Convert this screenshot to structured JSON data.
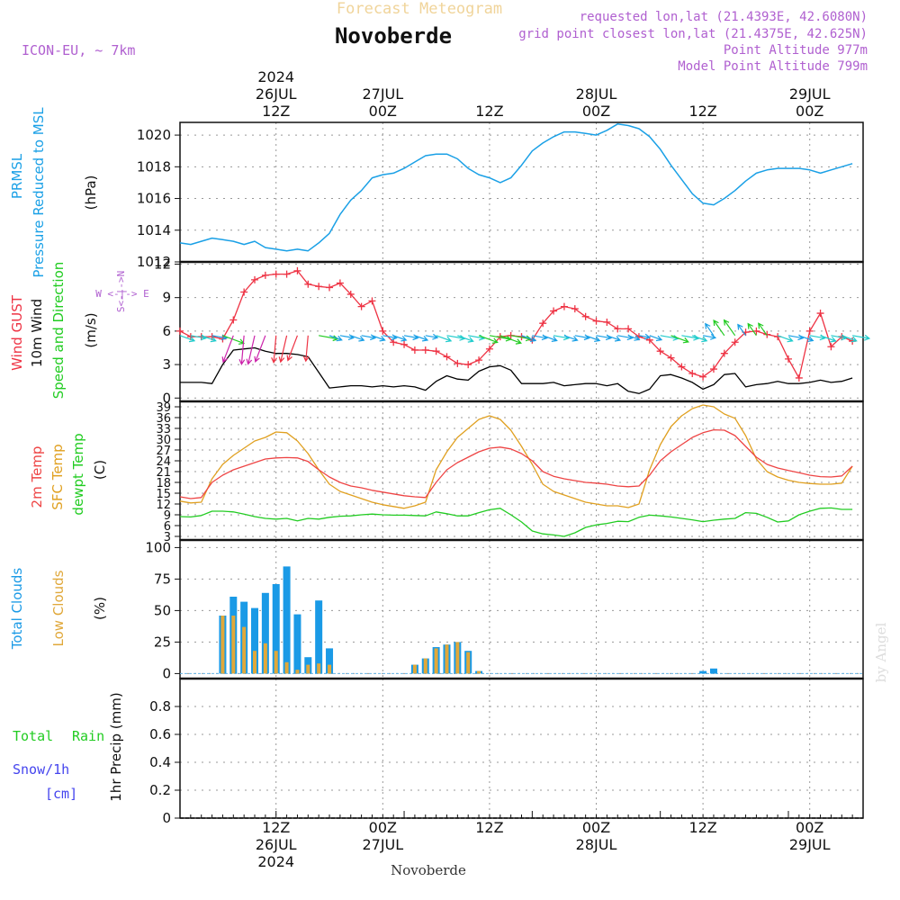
{
  "header": {
    "product": "Forecast Meteogram",
    "station": "Novoberde",
    "model": "ICON-EU, ~ 7km",
    "requested": "requested lon,lat (21.4393E, 42.6080N)",
    "closest": "grid point closest lon,lat (21.4375E, 42.625N)",
    "point_alt": "Point Altitude 977m",
    "model_alt": "Model Point Altitude 799m",
    "footer_station": "Novoberde",
    "watermark": "by Angel"
  },
  "colors": {
    "pressure": "#1aa0e6",
    "gust": "#ee3344",
    "wind10m": "#000000",
    "green": "#22cc22",
    "t2m": "#ee4444",
    "sfc": "#e0a020",
    "dew": "#22cc22",
    "total_clouds": "#1a9ae6",
    "low_clouds": "#e0a83a",
    "purple": "#b060d0",
    "snow": "#4444ee"
  },
  "time_axis": {
    "range_hours": [
      -9,
      55
    ],
    "top_ticks": [
      {
        "h": 0,
        "lines": [
          "2024",
          "26JUL",
          "12Z"
        ]
      },
      {
        "h": 10,
        "lines": [
          "27JUL",
          "00Z"
        ]
      },
      {
        "h": 20,
        "lines": [
          "12Z"
        ]
      },
      {
        "h": 30,
        "lines": [
          "28JUL",
          "00Z"
        ]
      },
      {
        "h": 40,
        "lines": [
          "12Z"
        ]
      },
      {
        "h": 50,
        "lines": [
          "29JUL",
          "00Z"
        ]
      }
    ],
    "bottom_ticks": [
      {
        "h": 0,
        "lines": [
          "12Z",
          "26JUL",
          "2024"
        ]
      },
      {
        "h": 10,
        "lines": [
          "00Z",
          "27JUL"
        ]
      },
      {
        "h": 20,
        "lines": [
          "12Z"
        ]
      },
      {
        "h": 30,
        "lines": [
          "00Z",
          "28JUL"
        ]
      },
      {
        "h": 40,
        "lines": [
          "12Z"
        ]
      },
      {
        "h": 50,
        "lines": [
          "00Z",
          "29JUL"
        ]
      }
    ]
  },
  "panels": {
    "pressure": {
      "label1": "PRMSL",
      "label2": "Pressure Reduced to MSL",
      "unit": "(hPa)",
      "ticks": [
        "1012",
        "1014",
        "1016",
        "1018",
        "1020"
      ]
    },
    "wind": {
      "label_gust": "Wind GUST",
      "label_wind": "10m Wind",
      "label_dir": "Speed and Direction",
      "unit": "(m/s)",
      "ticks": [
        "0",
        "3",
        "6",
        "9",
        "12"
      ],
      "compass": [
        "W <-|-> E",
        "S<-|->N"
      ]
    },
    "temp": {
      "label1": "2m Temp",
      "label2": "SFC Temp",
      "label3": "dewpt Temp",
      "unit": "(C)",
      "ticks": [
        "3",
        "6",
        "9",
        "12",
        "15",
        "18",
        "21",
        "24",
        "27",
        "30",
        "33",
        "36",
        "39"
      ]
    },
    "clouds": {
      "label1": "Total Clouds",
      "label2": "Low Clouds",
      "unit": "(%)",
      "ticks": [
        "0",
        "25",
        "50",
        "75",
        "100"
      ]
    },
    "precip": {
      "label1": "Total",
      "label2": "Rain",
      "label3": "Snow/1h",
      "label4": "[cm]",
      "unit": "1hr Precip (mm)",
      "ticks": [
        "0",
        "0.2",
        "0.4",
        "0.6",
        "0.8"
      ]
    }
  },
  "chart_data": [
    {
      "type": "line",
      "title": "PRMSL Pressure Reduced to MSL",
      "ylabel": "hPa",
      "ylim": [
        1012,
        1020.8
      ],
      "x": [
        -9,
        -8,
        -7,
        -6,
        -5,
        -4,
        -3,
        -2,
        -1,
        0,
        1,
        2,
        3,
        4,
        5,
        6,
        7,
        8,
        9,
        10,
        11,
        12,
        13,
        14,
        15,
        16,
        17,
        18,
        19,
        20,
        21,
        22,
        23,
        24,
        25,
        26,
        27,
        28,
        29,
        30,
        31,
        32,
        33,
        34,
        35,
        36,
        37,
        38,
        39,
        40,
        41,
        42,
        43,
        44,
        45,
        46,
        47,
        48,
        49,
        50,
        51,
        52,
        53,
        54
      ],
      "series": [
        {
          "name": "PRMSL",
          "values": [
            1013.2,
            1013.1,
            1013.3,
            1013.5,
            1013.4,
            1013.3,
            1013.1,
            1013.3,
            1012.9,
            1012.8,
            1012.7,
            1012.8,
            1012.7,
            1013.2,
            1013.8,
            1015.0,
            1015.9,
            1016.5,
            1017.3,
            1017.5,
            1017.6,
            1017.9,
            1018.3,
            1018.7,
            1018.8,
            1018.8,
            1018.5,
            1017.9,
            1017.5,
            1017.3,
            1017.0,
            1017.3,
            1018.1,
            1019.0,
            1019.5,
            1019.9,
            1020.2,
            1020.2,
            1020.1,
            1020.0,
            1020.3,
            1020.7,
            1020.6,
            1020.4,
            1019.9,
            1019.1,
            1018.1,
            1017.2,
            1016.3,
            1015.7,
            1015.6,
            1016.0,
            1016.5,
            1017.1,
            1017.6,
            1017.8,
            1017.9,
            1017.9,
            1017.9,
            1017.8,
            1017.6,
            1017.8,
            1018.0,
            1018.2
          ]
        }
      ]
    },
    {
      "type": "line",
      "title": "Wind GUST / 10m Wind Speed and Direction",
      "ylabel": "m/s",
      "ylim": [
        -0.3,
        12.2
      ],
      "x": [
        -9,
        -8,
        -7,
        -6,
        -5,
        -4,
        -3,
        -2,
        -1,
        0,
        1,
        2,
        3,
        4,
        5,
        6,
        7,
        8,
        9,
        10,
        11,
        12,
        13,
        14,
        15,
        16,
        17,
        18,
        19,
        20,
        21,
        22,
        23,
        24,
        25,
        26,
        27,
        28,
        29,
        30,
        31,
        32,
        33,
        34,
        35,
        36,
        37,
        38,
        39,
        40,
        41,
        42,
        43,
        44,
        45,
        46,
        47,
        48,
        49,
        50,
        51,
        52,
        53,
        54
      ],
      "series": [
        {
          "name": "Wind GUST",
          "values": [
            6.0,
            5.5,
            5.5,
            5.5,
            5.3,
            7.0,
            9.5,
            10.6,
            11.0,
            11.1,
            11.1,
            11.4,
            10.2,
            10.0,
            9.9,
            10.3,
            9.3,
            8.2,
            8.7,
            6.0,
            5.0,
            4.8,
            4.3,
            4.3,
            4.2,
            3.7,
            3.1,
            3.0,
            3.4,
            4.4,
            5.5,
            5.6,
            5.5,
            5.2,
            6.7,
            7.8,
            8.2,
            8.0,
            7.3,
            6.9,
            6.8,
            6.2,
            6.2,
            5.5,
            5.2,
            4.2,
            3.6,
            2.8,
            2.2,
            1.9,
            2.6,
            4.0,
            5.0,
            5.9,
            6.0,
            5.7,
            5.5,
            3.5,
            1.8,
            6.0,
            7.6,
            4.6,
            5.5,
            5.1
          ]
        },
        {
          "name": "10m Wind",
          "values": [
            1.4,
            1.4,
            1.4,
            1.3,
            3.0,
            4.3,
            4.4,
            4.5,
            4.2,
            4.0,
            4.0,
            3.9,
            3.7,
            2.3,
            0.9,
            1.0,
            1.1,
            1.1,
            1.0,
            1.1,
            1.0,
            1.1,
            1.0,
            0.7,
            1.5,
            2.0,
            1.7,
            1.6,
            2.4,
            2.8,
            2.9,
            2.5,
            1.3,
            1.3,
            1.3,
            1.4,
            1.1,
            1.2,
            1.3,
            1.3,
            1.1,
            1.3,
            0.6,
            0.4,
            0.8,
            2.0,
            2.1,
            1.8,
            1.4,
            0.8,
            1.2,
            2.1,
            2.2,
            1.0,
            1.2,
            1.3,
            1.5,
            1.3,
            1.3,
            1.4,
            1.6,
            1.4,
            1.5,
            1.8
          ]
        }
      ]
    },
    {
      "type": "line",
      "title": "2m Temp / SFC Temp / dewpt Temp",
      "ylabel": "C",
      "ylim": [
        2,
        40.5
      ],
      "x": [
        -9,
        -8,
        -7,
        -6,
        -5,
        -4,
        -3,
        -2,
        -1,
        0,
        1,
        2,
        3,
        4,
        5,
        6,
        7,
        8,
        9,
        10,
        11,
        12,
        13,
        14,
        15,
        16,
        17,
        18,
        19,
        20,
        21,
        22,
        23,
        24,
        25,
        26,
        27,
        28,
        29,
        30,
        31,
        32,
        33,
        34,
        35,
        36,
        37,
        38,
        39,
        40,
        41,
        42,
        43,
        44,
        45,
        46,
        47,
        48,
        49,
        50,
        51,
        52,
        53,
        54
      ],
      "series": [
        {
          "name": "2m Temp",
          "values": [
            14.0,
            13.5,
            13.8,
            18.0,
            20.0,
            21.5,
            22.5,
            23.5,
            24.5,
            24.8,
            24.9,
            24.8,
            23.8,
            21.5,
            19.5,
            18.0,
            17.0,
            16.5,
            15.8,
            15.3,
            14.8,
            14.3,
            14.0,
            13.8,
            18.0,
            21.5,
            23.5,
            25.0,
            26.5,
            27.5,
            27.8,
            27.3,
            26.0,
            24.0,
            21.0,
            19.7,
            19.0,
            18.5,
            18.0,
            17.8,
            17.5,
            17.0,
            16.8,
            17.0,
            20.0,
            24.0,
            26.5,
            28.5,
            30.5,
            31.8,
            32.6,
            32.5,
            31.0,
            28.0,
            25.0,
            23.0,
            22.0,
            21.3,
            20.7,
            20.0,
            19.6,
            19.5,
            19.8,
            22.5
          ]
        },
        {
          "name": "SFC Temp",
          "values": [
            12.8,
            12.3,
            12.5,
            19.0,
            23.0,
            25.5,
            27.5,
            29.5,
            30.5,
            32.0,
            31.8,
            29.5,
            26.0,
            21.5,
            17.5,
            15.5,
            14.5,
            13.5,
            12.5,
            11.8,
            11.3,
            10.8,
            11.5,
            12.5,
            21.5,
            26.5,
            30.5,
            33.0,
            35.5,
            36.5,
            35.5,
            32.5,
            28.0,
            23.0,
            17.5,
            15.5,
            14.5,
            13.5,
            12.5,
            12.0,
            11.5,
            11.5,
            11.0,
            12.0,
            21.5,
            28.5,
            33.5,
            36.5,
            38.5,
            39.5,
            39.0,
            37.0,
            35.8,
            31.0,
            24.5,
            21.0,
            19.5,
            18.6,
            18.0,
            17.7,
            17.5,
            17.5,
            17.8,
            22.5
          ]
        },
        {
          "name": "dewpt Temp",
          "values": [
            8.5,
            8.4,
            8.8,
            10.0,
            10.0,
            9.8,
            9.2,
            8.5,
            8.0,
            7.8,
            8.0,
            7.3,
            8.0,
            7.8,
            8.3,
            8.6,
            8.7,
            9.0,
            9.2,
            9.0,
            8.9,
            8.9,
            8.8,
            8.7,
            9.8,
            9.3,
            8.7,
            8.7,
            9.6,
            10.4,
            10.8,
            9.0,
            7.0,
            4.5,
            3.7,
            3.4,
            3.0,
            4.0,
            5.5,
            6.2,
            6.6,
            7.2,
            7.1,
            8.3,
            8.9,
            8.7,
            8.4,
            8.0,
            7.6,
            7.1,
            7.5,
            7.8,
            8.0,
            9.6,
            9.4,
            8.3,
            7.0,
            7.3,
            9.0,
            10.0,
            10.8,
            10.9,
            10.5,
            10.5
          ]
        }
      ]
    },
    {
      "type": "bar",
      "title": "Total Clouds / Low Clouds",
      "ylabel": "%",
      "ylim": [
        -4,
        106
      ],
      "x": [
        -5,
        -4,
        -3,
        -2,
        -1,
        0,
        1,
        2,
        3,
        4,
        5,
        13,
        14,
        15,
        16,
        17,
        18,
        19,
        40,
        41
      ],
      "series": [
        {
          "name": "Total Clouds",
          "values": [
            46,
            61,
            57,
            52,
            64,
            71,
            85,
            47,
            13,
            58,
            20,
            7,
            12,
            21,
            23,
            25,
            18,
            2,
            2,
            4
          ]
        },
        {
          "name": "Low Clouds",
          "values": [
            46,
            46,
            37,
            18,
            24,
            18,
            9,
            3,
            7,
            8,
            7,
            7,
            12,
            20,
            23,
            25,
            17,
            2,
            0,
            0
          ]
        }
      ]
    },
    {
      "type": "bar",
      "title": "1hr Precip",
      "ylabel": "mm",
      "ylim": [
        0,
        1.0
      ],
      "x": [],
      "series": [
        {
          "name": "Total Rain",
          "values": []
        },
        {
          "name": "Snow/1h",
          "values": []
        }
      ]
    }
  ]
}
